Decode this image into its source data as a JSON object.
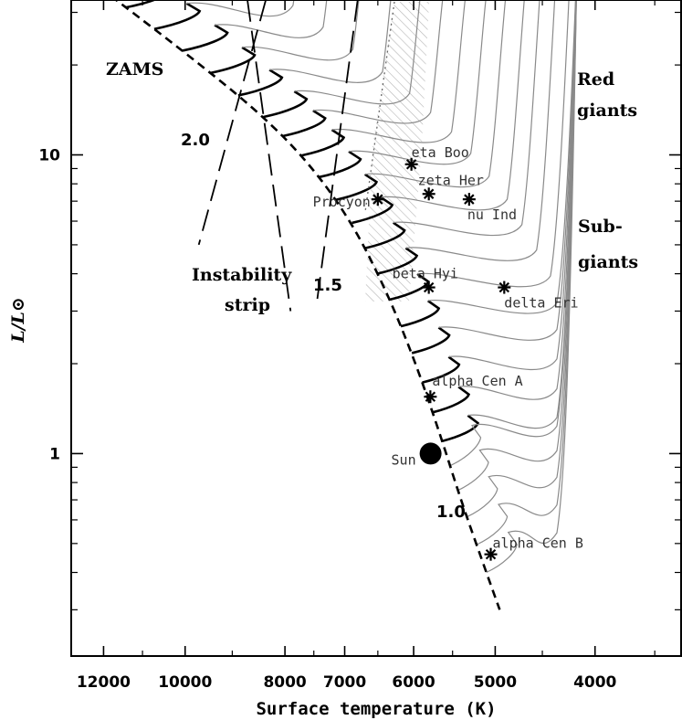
{
  "chart_data": {
    "type": "scatter",
    "xlabel": "Surface temperature (K)",
    "ylabel": "L/L⊙",
    "x_scale": "log",
    "x_reversed": true,
    "y_scale": "log",
    "xlim": [
      12900,
      3300
    ],
    "ylim": [
      0.21,
      33
    ],
    "x_ticks": [
      12000,
      10000,
      8000,
      7000,
      6000,
      5000,
      4000
    ],
    "x_tick_labels": [
      "12000",
      "10000",
      "8000",
      "7000",
      "6000",
      "5000",
      "4000"
    ],
    "y_ticks": [
      1,
      10
    ],
    "y_tick_labels": [
      "1",
      "10"
    ],
    "stars": [
      {
        "name": "eta Boo",
        "teff": 6030,
        "lum": 9.3
      },
      {
        "name": "zeta Her",
        "teff": 5800,
        "lum": 7.4
      },
      {
        "name": "Procyon",
        "teff": 6500,
        "lum": 7.1
      },
      {
        "name": "nu Ind",
        "teff": 5300,
        "lum": 7.1
      },
      {
        "name": "beta Hyi",
        "teff": 5800,
        "lum": 3.6
      },
      {
        "name": "delta Eri",
        "teff": 4900,
        "lum": 3.6
      },
      {
        "name": "alpha Cen A",
        "teff": 5780,
        "lum": 1.55
      },
      {
        "name": "alpha Cen B",
        "teff": 5050,
        "lum": 0.46
      }
    ],
    "sun": {
      "name": "Sun",
      "teff": 5777,
      "lum": 1.0
    },
    "zams": [
      [
        11800,
        34
      ],
      [
        10000,
        22
      ],
      [
        8500,
        14
      ],
      [
        7600,
        9.5
      ],
      [
        6900,
        6.0
      ],
      [
        6400,
        3.6
      ],
      [
        6000,
        2.1
      ],
      [
        5650,
        1.15
      ],
      [
        5400,
        0.7
      ],
      [
        5100,
        0.4
      ],
      [
        4950,
        0.3
      ]
    ],
    "instability_strip": {
      "blue_edge": [
        [
          8700,
          33
        ],
        [
          7900,
          3.0
        ]
      ],
      "red_edge": [
        [
          6800,
          33
        ],
        [
          7450,
          3.2
        ]
      ],
      "outer_blue_edge": [
        [
          8350,
          33
        ],
        [
          9700,
          5.0
        ]
      ]
    }
  },
  "labels": {
    "zams": "ZAMS",
    "red_giants_1": "Red",
    "red_giants_2": "giants",
    "subgiants_1": "Sub-",
    "subgiants_2": "giants",
    "instability_1": "Instability",
    "instability_2": "strip",
    "mass_2_0": "2.0",
    "mass_1_5": "1.5",
    "mass_1_0": "1.0"
  }
}
